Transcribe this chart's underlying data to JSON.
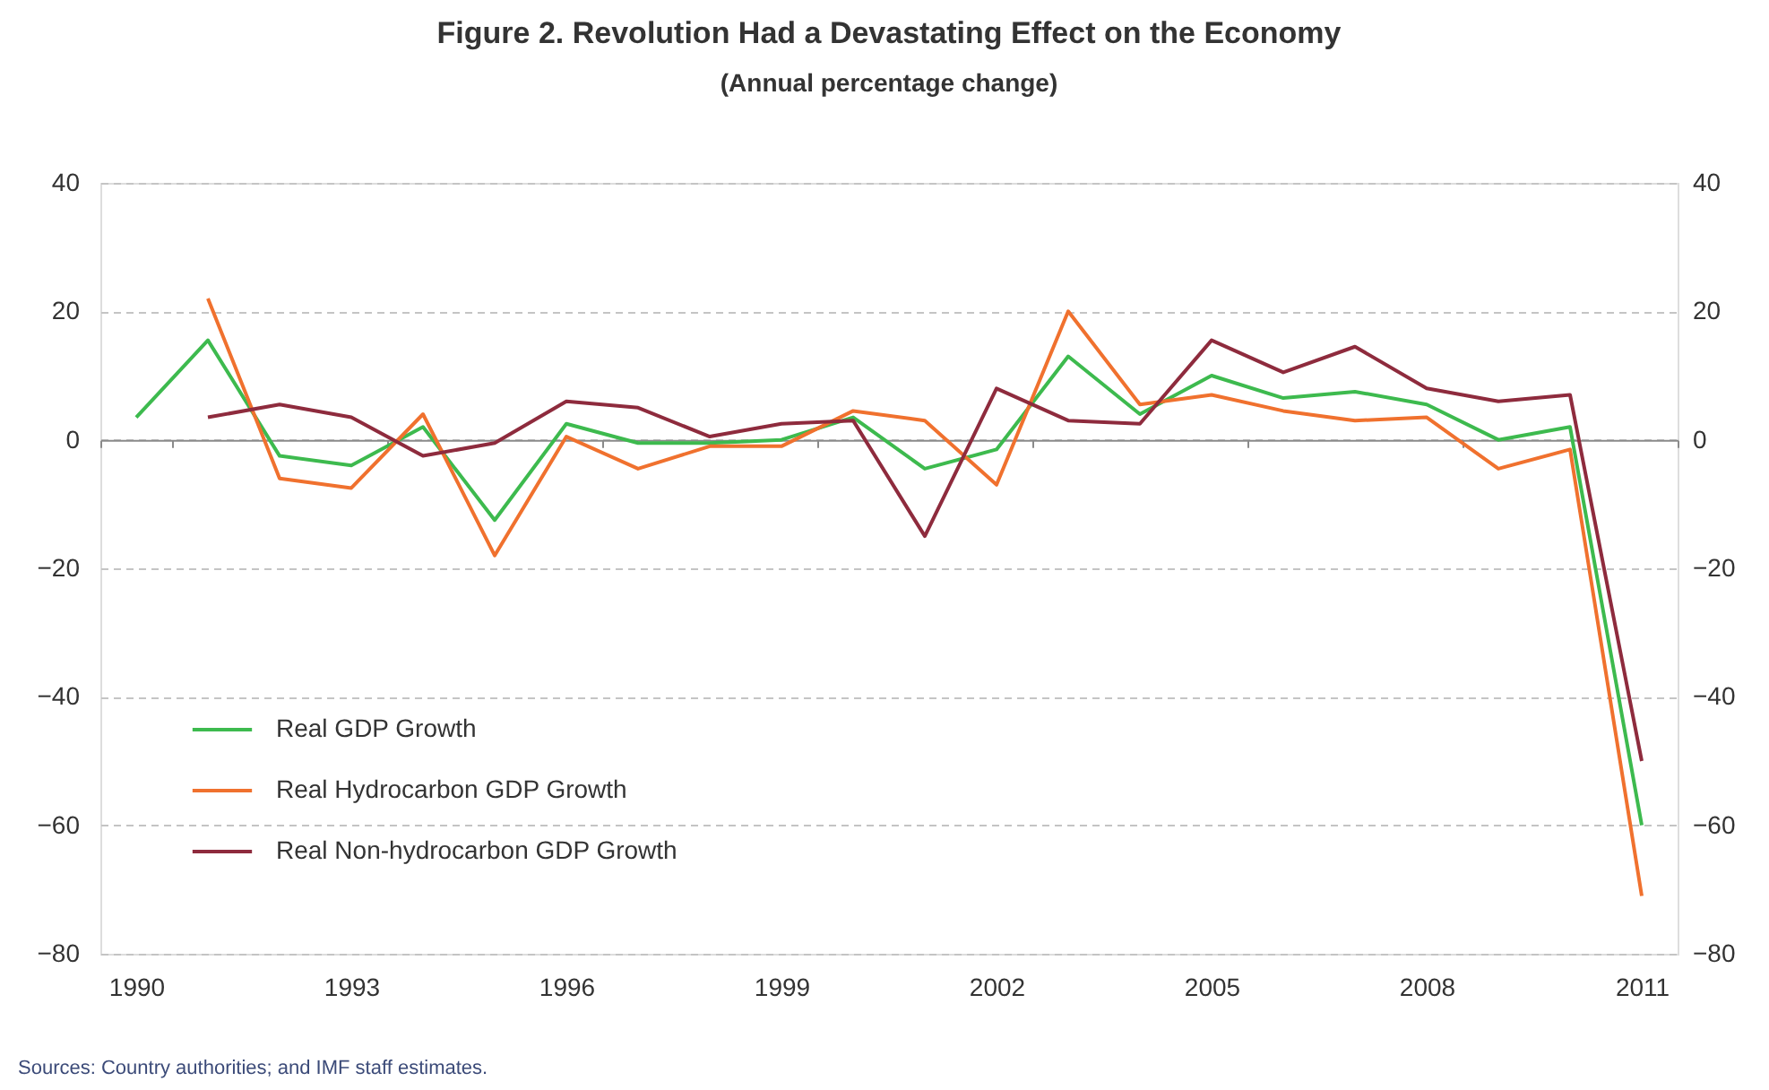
{
  "chart_data": {
    "type": "line",
    "title": "Figure 2. Revolution Had a Devastating Effect on the Economy",
    "subtitle": "(Annual percentage change)",
    "categories": [
      "1990",
      null,
      null,
      "1993",
      null,
      null,
      "1996",
      null,
      null,
      "1999",
      null,
      null,
      "2002",
      null,
      null,
      "2005",
      null,
      null,
      "2008",
      null,
      null,
      "2011"
    ],
    "series": [
      {
        "name": "Real GDP Growth",
        "color": "#3dba4e",
        "values": [
          3.5,
          15.5,
          -2.5,
          -4,
          2,
          -12.5,
          2.5,
          -0.5,
          -0.5,
          0,
          3.5,
          -4.5,
          -1.5,
          13,
          4,
          10,
          6.5,
          7.5,
          5.5,
          0,
          2,
          -60
        ]
      },
      {
        "name": "Real Hydrocarbon GDP Growth",
        "color": "#f0712e",
        "values": [
          null,
          22,
          -6,
          -7.5,
          4,
          -18,
          0.5,
          -4.5,
          -1,
          -1,
          4.5,
          3,
          -7,
          20,
          5.5,
          7,
          4.5,
          3,
          3.5,
          -4.5,
          -1.5,
          -71
        ]
      },
      {
        "name": "Real Non-hydrocarbon GDP Growth",
        "color": "#8e2b3d",
        "values": [
          null,
          3.5,
          5.5,
          3.5,
          -2.5,
          -0.5,
          6,
          5,
          0.5,
          2.5,
          3,
          -15,
          8,
          3,
          2.5,
          15.5,
          10.5,
          14.5,
          8,
          6,
          7,
          -50
        ]
      }
    ],
    "ylim": [
      -80,
      40
    ],
    "yticks": [
      -80,
      -60,
      -40,
      -20,
      0,
      20,
      40
    ],
    "y2lim": [
      -80,
      40
    ],
    "y2ticks": [
      -80,
      -60,
      -40,
      -20,
      0,
      20,
      40
    ],
    "grid": "y",
    "legend": "bottom left",
    "annotations": [
      "Sources: Country authorities; and IMF staff estimates."
    ]
  }
}
